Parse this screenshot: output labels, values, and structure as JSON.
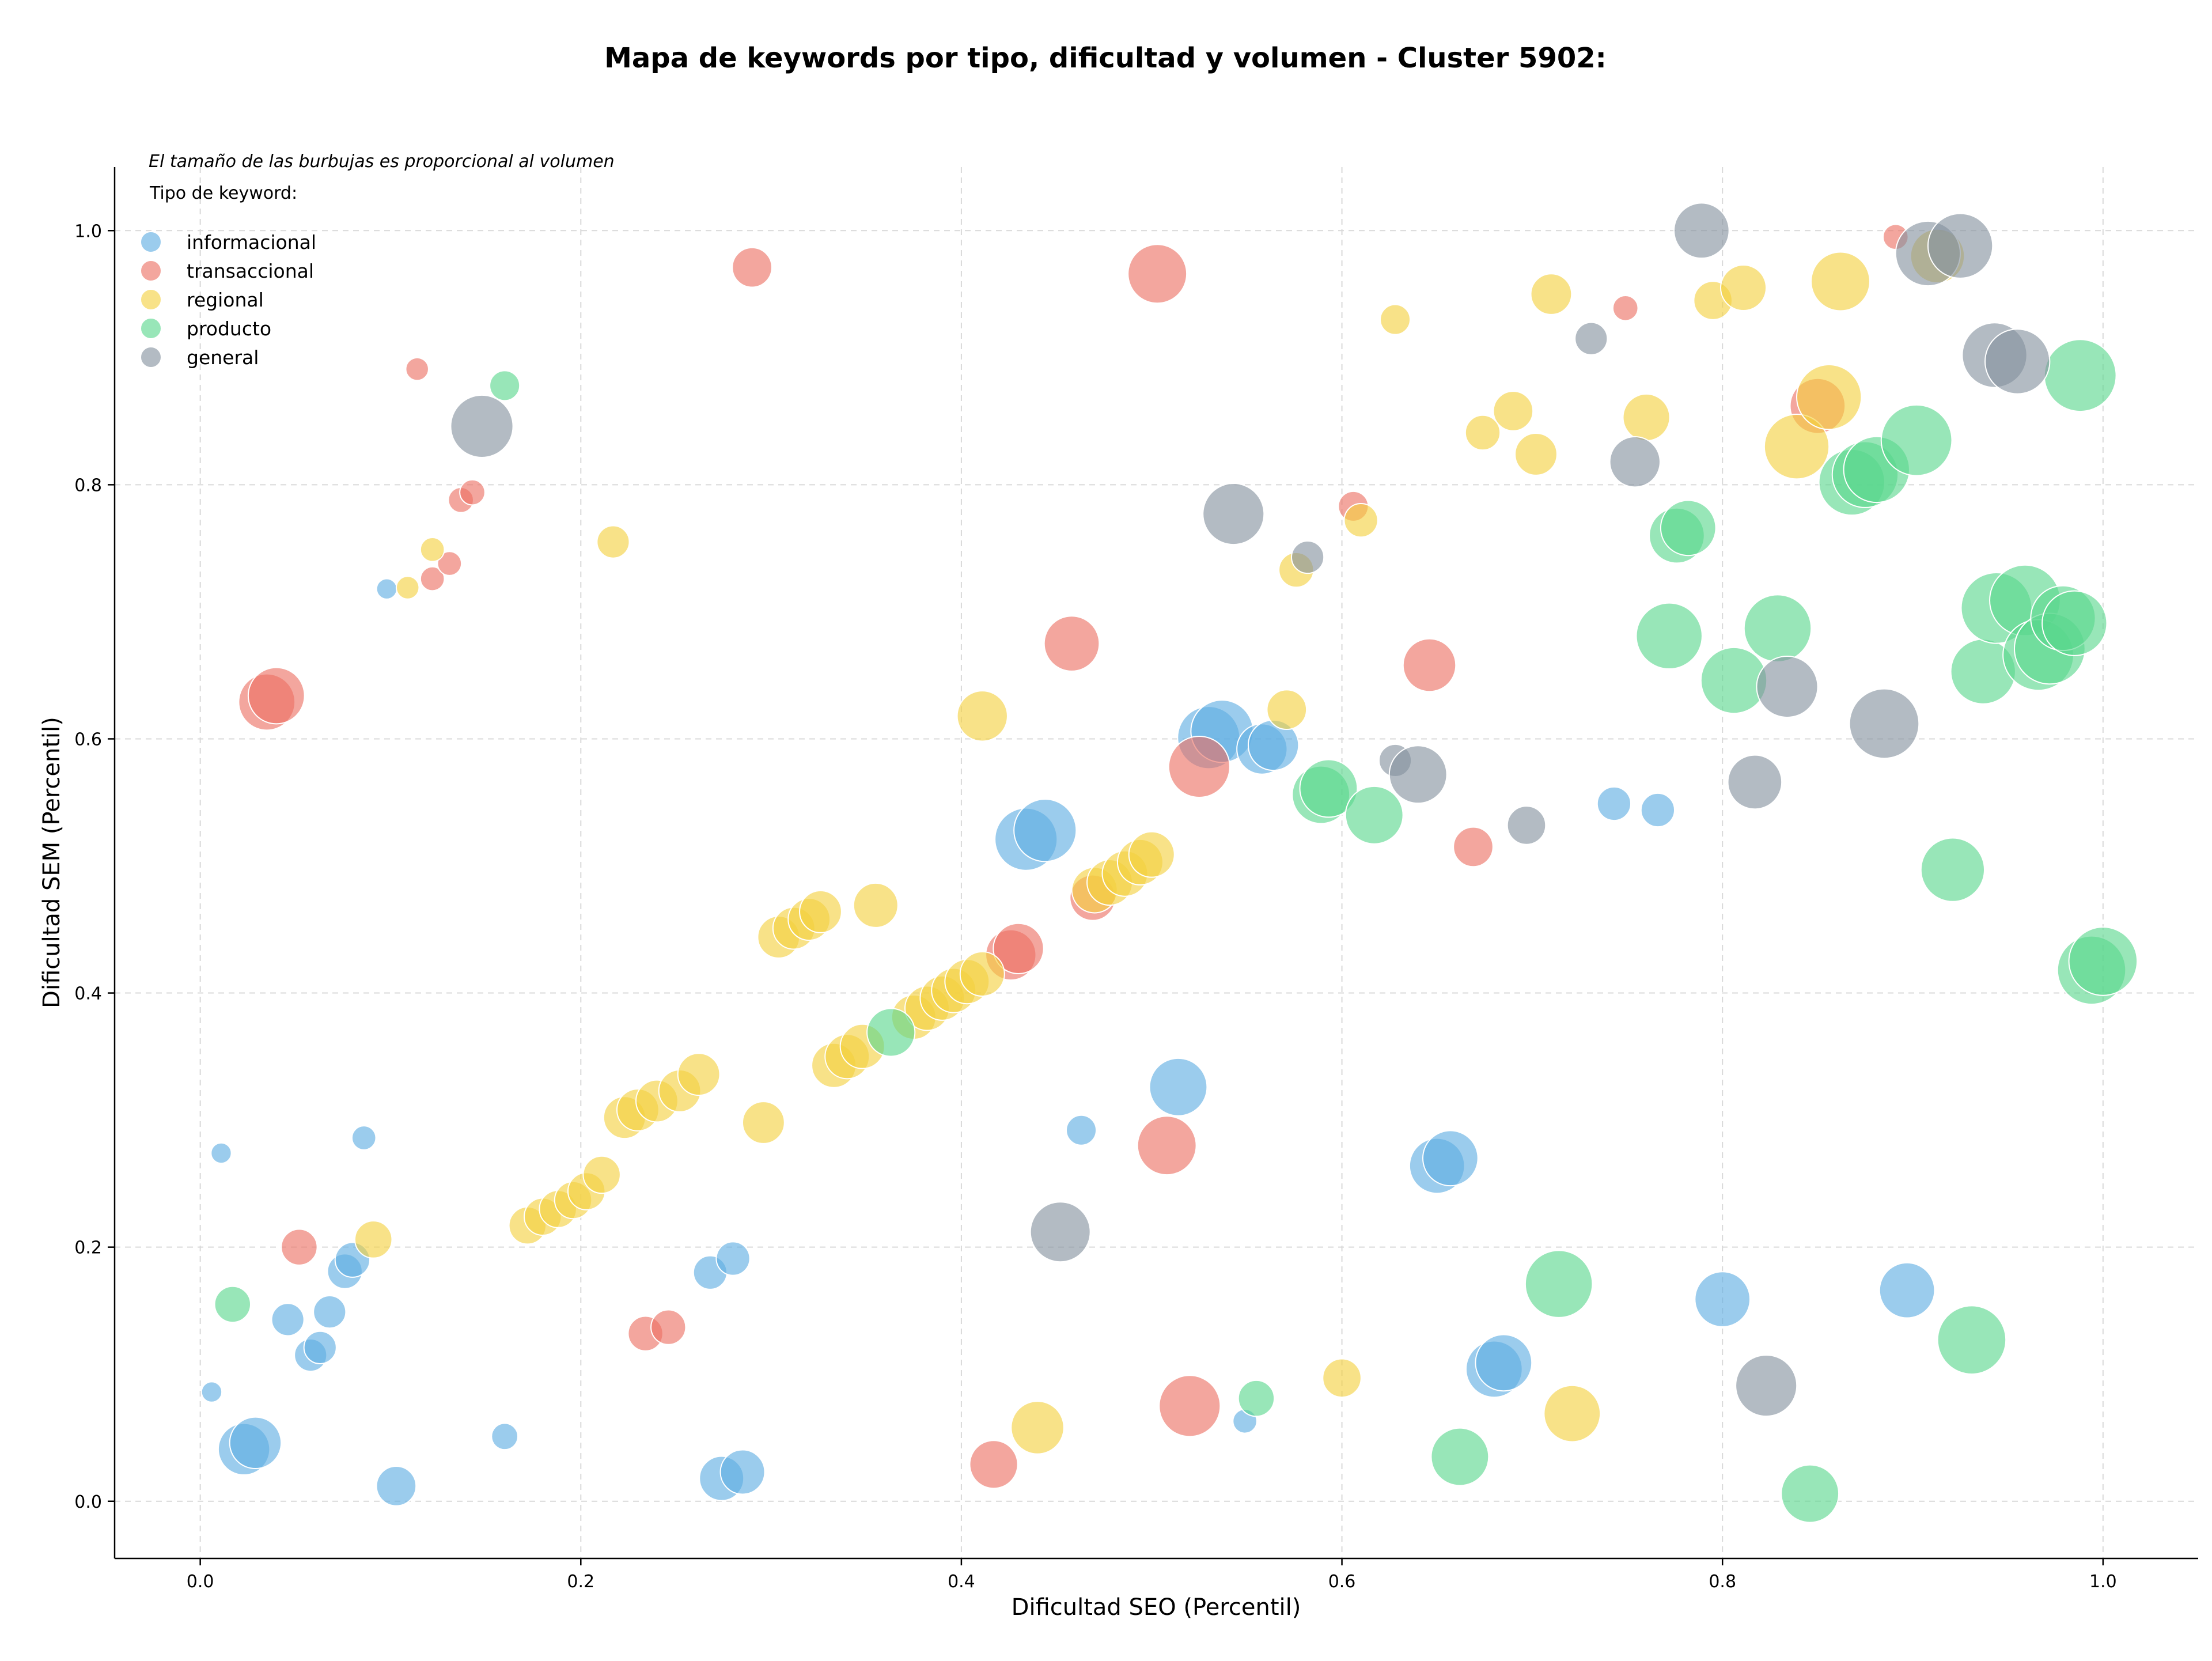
{
  "chart_data": {
    "type": "scatter",
    "title": "Mapa de keywords por tipo, dificultad y volumen - Cluster 5902:",
    "xlabel": "Dificultad SEO (Percentil)",
    "ylabel": "Dificultad SEM (Percentil)",
    "xlim": [
      -0.045,
      1.05
    ],
    "ylim": [
      -0.045,
      1.05
    ],
    "x_ticks": [
      "0.0",
      "0.2",
      "0.4",
      "0.6",
      "0.8",
      "1.0"
    ],
    "y_ticks": [
      "0.0",
      "0.2",
      "0.4",
      "0.6",
      "0.8",
      "1.0"
    ],
    "grid": true,
    "size_note": "El tamaño de las burbujas es proporcional al volumen",
    "legend_title": "Tipo de keyword:",
    "legend_position": "top-left",
    "series": [
      {
        "name": "informacional",
        "color": "#5dade2",
        "points": [
          [
            0.011,
            0.274,
            17
          ],
          [
            0.086,
            0.286,
            20
          ],
          [
            0.098,
            0.718,
            17
          ],
          [
            0.006,
            0.086,
            17
          ],
          [
            0.076,
            0.181,
            29
          ],
          [
            0.08,
            0.19,
            29
          ],
          [
            0.046,
            0.143,
            27
          ],
          [
            0.068,
            0.149,
            27
          ],
          [
            0.058,
            0.115,
            27
          ],
          [
            0.063,
            0.121,
            27
          ],
          [
            0.023,
            0.041,
            43
          ],
          [
            0.029,
            0.046,
            43
          ],
          [
            0.16,
            0.051,
            22
          ],
          [
            0.103,
            0.012,
            33
          ],
          [
            0.268,
            0.18,
            28
          ],
          [
            0.28,
            0.191,
            28
          ],
          [
            0.274,
            0.018,
            37
          ],
          [
            0.285,
            0.023,
            37
          ],
          [
            0.463,
            0.292,
            25
          ],
          [
            0.514,
            0.326,
            48
          ],
          [
            0.434,
            0.521,
            52
          ],
          [
            0.444,
            0.528,
            52
          ],
          [
            0.53,
            0.601,
            52
          ],
          [
            0.537,
            0.606,
            52
          ],
          [
            0.558,
            0.592,
            42
          ],
          [
            0.564,
            0.595,
            42
          ],
          [
            0.549,
            0.063,
            20
          ],
          [
            0.65,
            0.264,
            46
          ],
          [
            0.657,
            0.27,
            46
          ],
          [
            0.68,
            0.104,
            47
          ],
          [
            0.685,
            0.109,
            47
          ],
          [
            0.743,
            0.549,
            28
          ],
          [
            0.766,
            0.544,
            28
          ],
          [
            0.8,
            0.159,
            46
          ],
          [
            0.897,
            0.166,
            46
          ]
        ]
      },
      {
        "name": "transaccional",
        "color": "#ec7063",
        "points": [
          [
            0.114,
            0.891,
            19
          ],
          [
            0.137,
            0.788,
            21
          ],
          [
            0.143,
            0.794,
            21
          ],
          [
            0.122,
            0.726,
            20
          ],
          [
            0.131,
            0.738,
            20
          ],
          [
            0.035,
            0.629,
            47
          ],
          [
            0.04,
            0.634,
            47
          ],
          [
            0.052,
            0.2,
            30
          ],
          [
            0.234,
            0.132,
            29
          ],
          [
            0.246,
            0.137,
            29
          ],
          [
            0.29,
            0.971,
            33
          ],
          [
            0.503,
            0.966,
            49
          ],
          [
            0.458,
            0.675,
            46
          ],
          [
            0.426,
            0.43,
            42
          ],
          [
            0.43,
            0.435,
            42
          ],
          [
            0.469,
            0.475,
            38
          ],
          [
            0.525,
            0.578,
            51
          ],
          [
            0.508,
            0.28,
            49
          ],
          [
            0.52,
            0.075,
            51
          ],
          [
            0.417,
            0.029,
            40
          ],
          [
            0.606,
            0.783,
            25
          ],
          [
            0.646,
            0.658,
            44
          ],
          [
            0.669,
            0.515,
            33
          ],
          [
            0.749,
            0.939,
            21
          ],
          [
            0.891,
            0.995,
            21
          ],
          [
            0.85,
            0.862,
            46
          ]
        ]
      },
      {
        "name": "regional",
        "color": "#f4d03f",
        "points": [
          [
            0.122,
            0.749,
            20
          ],
          [
            0.109,
            0.719,
            19
          ],
          [
            0.217,
            0.755,
            27
          ],
          [
            0.091,
            0.206,
            31
          ],
          [
            0.172,
            0.217,
            31
          ],
          [
            0.18,
            0.224,
            31
          ],
          [
            0.188,
            0.23,
            31
          ],
          [
            0.196,
            0.237,
            31
          ],
          [
            0.203,
            0.244,
            31
          ],
          [
            0.211,
            0.257,
            31
          ],
          [
            0.223,
            0.302,
            35
          ],
          [
            0.23,
            0.308,
            35
          ],
          [
            0.24,
            0.315,
            35
          ],
          [
            0.252,
            0.323,
            35
          ],
          [
            0.262,
            0.336,
            35
          ],
          [
            0.296,
            0.298,
            35
          ],
          [
            0.304,
            0.444,
            35
          ],
          [
            0.312,
            0.451,
            35
          ],
          [
            0.32,
            0.458,
            35
          ],
          [
            0.326,
            0.464,
            35
          ],
          [
            0.355,
            0.469,
            37
          ],
          [
            0.333,
            0.343,
            37
          ],
          [
            0.34,
            0.35,
            37
          ],
          [
            0.348,
            0.358,
            37
          ],
          [
            0.375,
            0.381,
            37
          ],
          [
            0.382,
            0.388,
            37
          ],
          [
            0.39,
            0.396,
            37
          ],
          [
            0.396,
            0.402,
            37
          ],
          [
            0.403,
            0.409,
            37
          ],
          [
            0.411,
            0.415,
            37
          ],
          [
            0.411,
            0.618,
            42
          ],
          [
            0.47,
            0.481,
            38
          ],
          [
            0.478,
            0.487,
            38
          ],
          [
            0.486,
            0.494,
            38
          ],
          [
            0.494,
            0.503,
            38
          ],
          [
            0.5,
            0.509,
            38
          ],
          [
            0.44,
            0.058,
            44
          ],
          [
            0.571,
            0.623,
            33
          ],
          [
            0.576,
            0.733,
            29
          ],
          [
            0.61,
            0.772,
            28
          ],
          [
            0.628,
            0.93,
            25
          ],
          [
            0.6,
            0.097,
            32
          ],
          [
            0.674,
            0.841,
            29
          ],
          [
            0.69,
            0.858,
            33
          ],
          [
            0.702,
            0.824,
            35
          ],
          [
            0.71,
            0.95,
            34
          ],
          [
            0.721,
            0.069,
            47
          ],
          [
            0.76,
            0.853,
            39
          ],
          [
            0.795,
            0.945,
            32
          ],
          [
            0.811,
            0.955,
            38
          ],
          [
            0.839,
            0.83,
            54
          ],
          [
            0.856,
            0.869,
            54
          ],
          [
            0.862,
            0.96,
            49
          ],
          [
            0.913,
            0.98,
            45
          ]
        ]
      },
      {
        "name": "producto",
        "color": "#58d68d",
        "points": [
          [
            0.16,
            0.878,
            25
          ],
          [
            0.017,
            0.155,
            30
          ],
          [
            0.363,
            0.369,
            40
          ],
          [
            0.589,
            0.556,
            48
          ],
          [
            0.593,
            0.561,
            48
          ],
          [
            0.617,
            0.54,
            48
          ],
          [
            0.555,
            0.081,
            30
          ],
          [
            0.662,
            0.035,
            48
          ],
          [
            0.714,
            0.171,
            56
          ],
          [
            0.772,
            0.681,
            55
          ],
          [
            0.776,
            0.76,
            46
          ],
          [
            0.782,
            0.766,
            46
          ],
          [
            0.806,
            0.646,
            55
          ],
          [
            0.829,
            0.687,
            56
          ],
          [
            0.846,
            0.006,
            48
          ],
          [
            0.868,
            0.802,
            55
          ],
          [
            0.875,
            0.808,
            55
          ],
          [
            0.881,
            0.812,
            55
          ],
          [
            0.902,
            0.835,
            59
          ],
          [
            0.921,
            0.497,
            53
          ],
          [
            0.931,
            0.127,
            57
          ],
          [
            0.937,
            0.653,
            54
          ],
          [
            0.944,
            0.703,
            59
          ],
          [
            0.959,
            0.709,
            59
          ],
          [
            0.966,
            0.666,
            59
          ],
          [
            0.972,
            0.671,
            59
          ],
          [
            0.979,
            0.695,
            54
          ],
          [
            0.985,
            0.691,
            54
          ],
          [
            0.988,
            0.886,
            60
          ],
          [
            0.994,
            0.418,
            57
          ],
          [
            1.0,
            0.425,
            57
          ]
        ]
      },
      {
        "name": "general",
        "color": "#85929e",
        "points": [
          [
            0.148,
            0.846,
            52
          ],
          [
            0.543,
            0.777,
            51
          ],
          [
            0.452,
            0.212,
            50
          ],
          [
            0.582,
            0.743,
            27
          ],
          [
            0.628,
            0.583,
            27
          ],
          [
            0.64,
            0.572,
            48
          ],
          [
            0.697,
            0.532,
            32
          ],
          [
            0.731,
            0.915,
            27
          ],
          [
            0.754,
            0.818,
            42
          ],
          [
            0.789,
            1.0,
            46
          ],
          [
            0.817,
            0.566,
            45
          ],
          [
            0.823,
            0.091,
            51
          ],
          [
            0.834,
            0.641,
            51
          ],
          [
            0.885,
            0.612,
            58
          ],
          [
            0.908,
            0.982,
            54
          ],
          [
            0.925,
            0.988,
            54
          ],
          [
            0.943,
            0.902,
            54
          ],
          [
            0.955,
            0.897,
            54
          ]
        ]
      }
    ]
  }
}
